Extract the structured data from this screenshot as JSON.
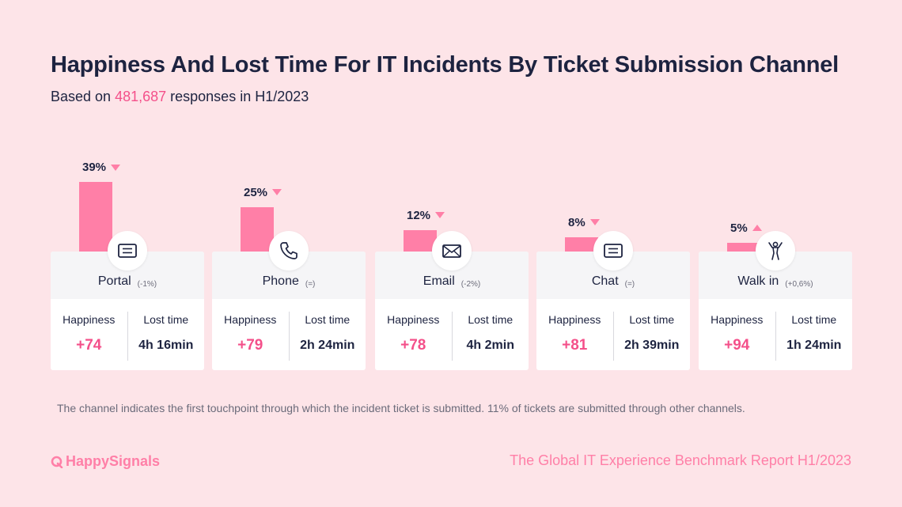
{
  "title": "Happiness And Lost Time For IT Incidents By Ticket Submission Channel",
  "subtitle": {
    "prefix": "Based on ",
    "count": "481,687",
    "suffix": " responses in H1/2023"
  },
  "labels": {
    "happiness": "Happiness",
    "lost_time": "Lost time"
  },
  "colors": {
    "accent": "#f4508a",
    "bar": "#ff7fa7",
    "background": "#fde4e8"
  },
  "chart_data": {
    "type": "bar",
    "categories": [
      "Portal",
      "Phone",
      "Email",
      "Chat",
      "Walk in"
    ],
    "values": [
      39,
      25,
      12,
      8,
      5
    ],
    "unit": "%",
    "ylim": [
      0,
      39
    ],
    "grid": false
  },
  "channels": [
    {
      "name": "Portal",
      "share": "39%",
      "share_value": 39,
      "trend": "down",
      "change": "(-1%)",
      "happiness": "+74",
      "lost_time": "4h 16min",
      "icon": "portal-icon"
    },
    {
      "name": "Phone",
      "share": "25%",
      "share_value": 25,
      "trend": "down",
      "change": "(=)",
      "happiness": "+79",
      "lost_time": "2h 24min",
      "icon": "phone-icon"
    },
    {
      "name": "Email",
      "share": "12%",
      "share_value": 12,
      "trend": "down",
      "change": "(-2%)",
      "happiness": "+78",
      "lost_time": "4h 2min",
      "icon": "email-icon"
    },
    {
      "name": "Chat",
      "share": "8%",
      "share_value": 8,
      "trend": "down",
      "change": "(=)",
      "happiness": "+81",
      "lost_time": "2h 39min",
      "icon": "chat-icon"
    },
    {
      "name": "Walk in",
      "share": "5%",
      "share_value": 5,
      "trend": "up",
      "change": "(+0,6%)",
      "happiness": "+94",
      "lost_time": "1h 24min",
      "icon": "walk-in-icon"
    }
  ],
  "footnote": "The channel indicates the first touchpoint through which the incident ticket is submitted. 11% of tickets are submitted through other channels.",
  "brand": "HappySignals",
  "report": "The Global IT Experience Benchmark Report H1/2023"
}
